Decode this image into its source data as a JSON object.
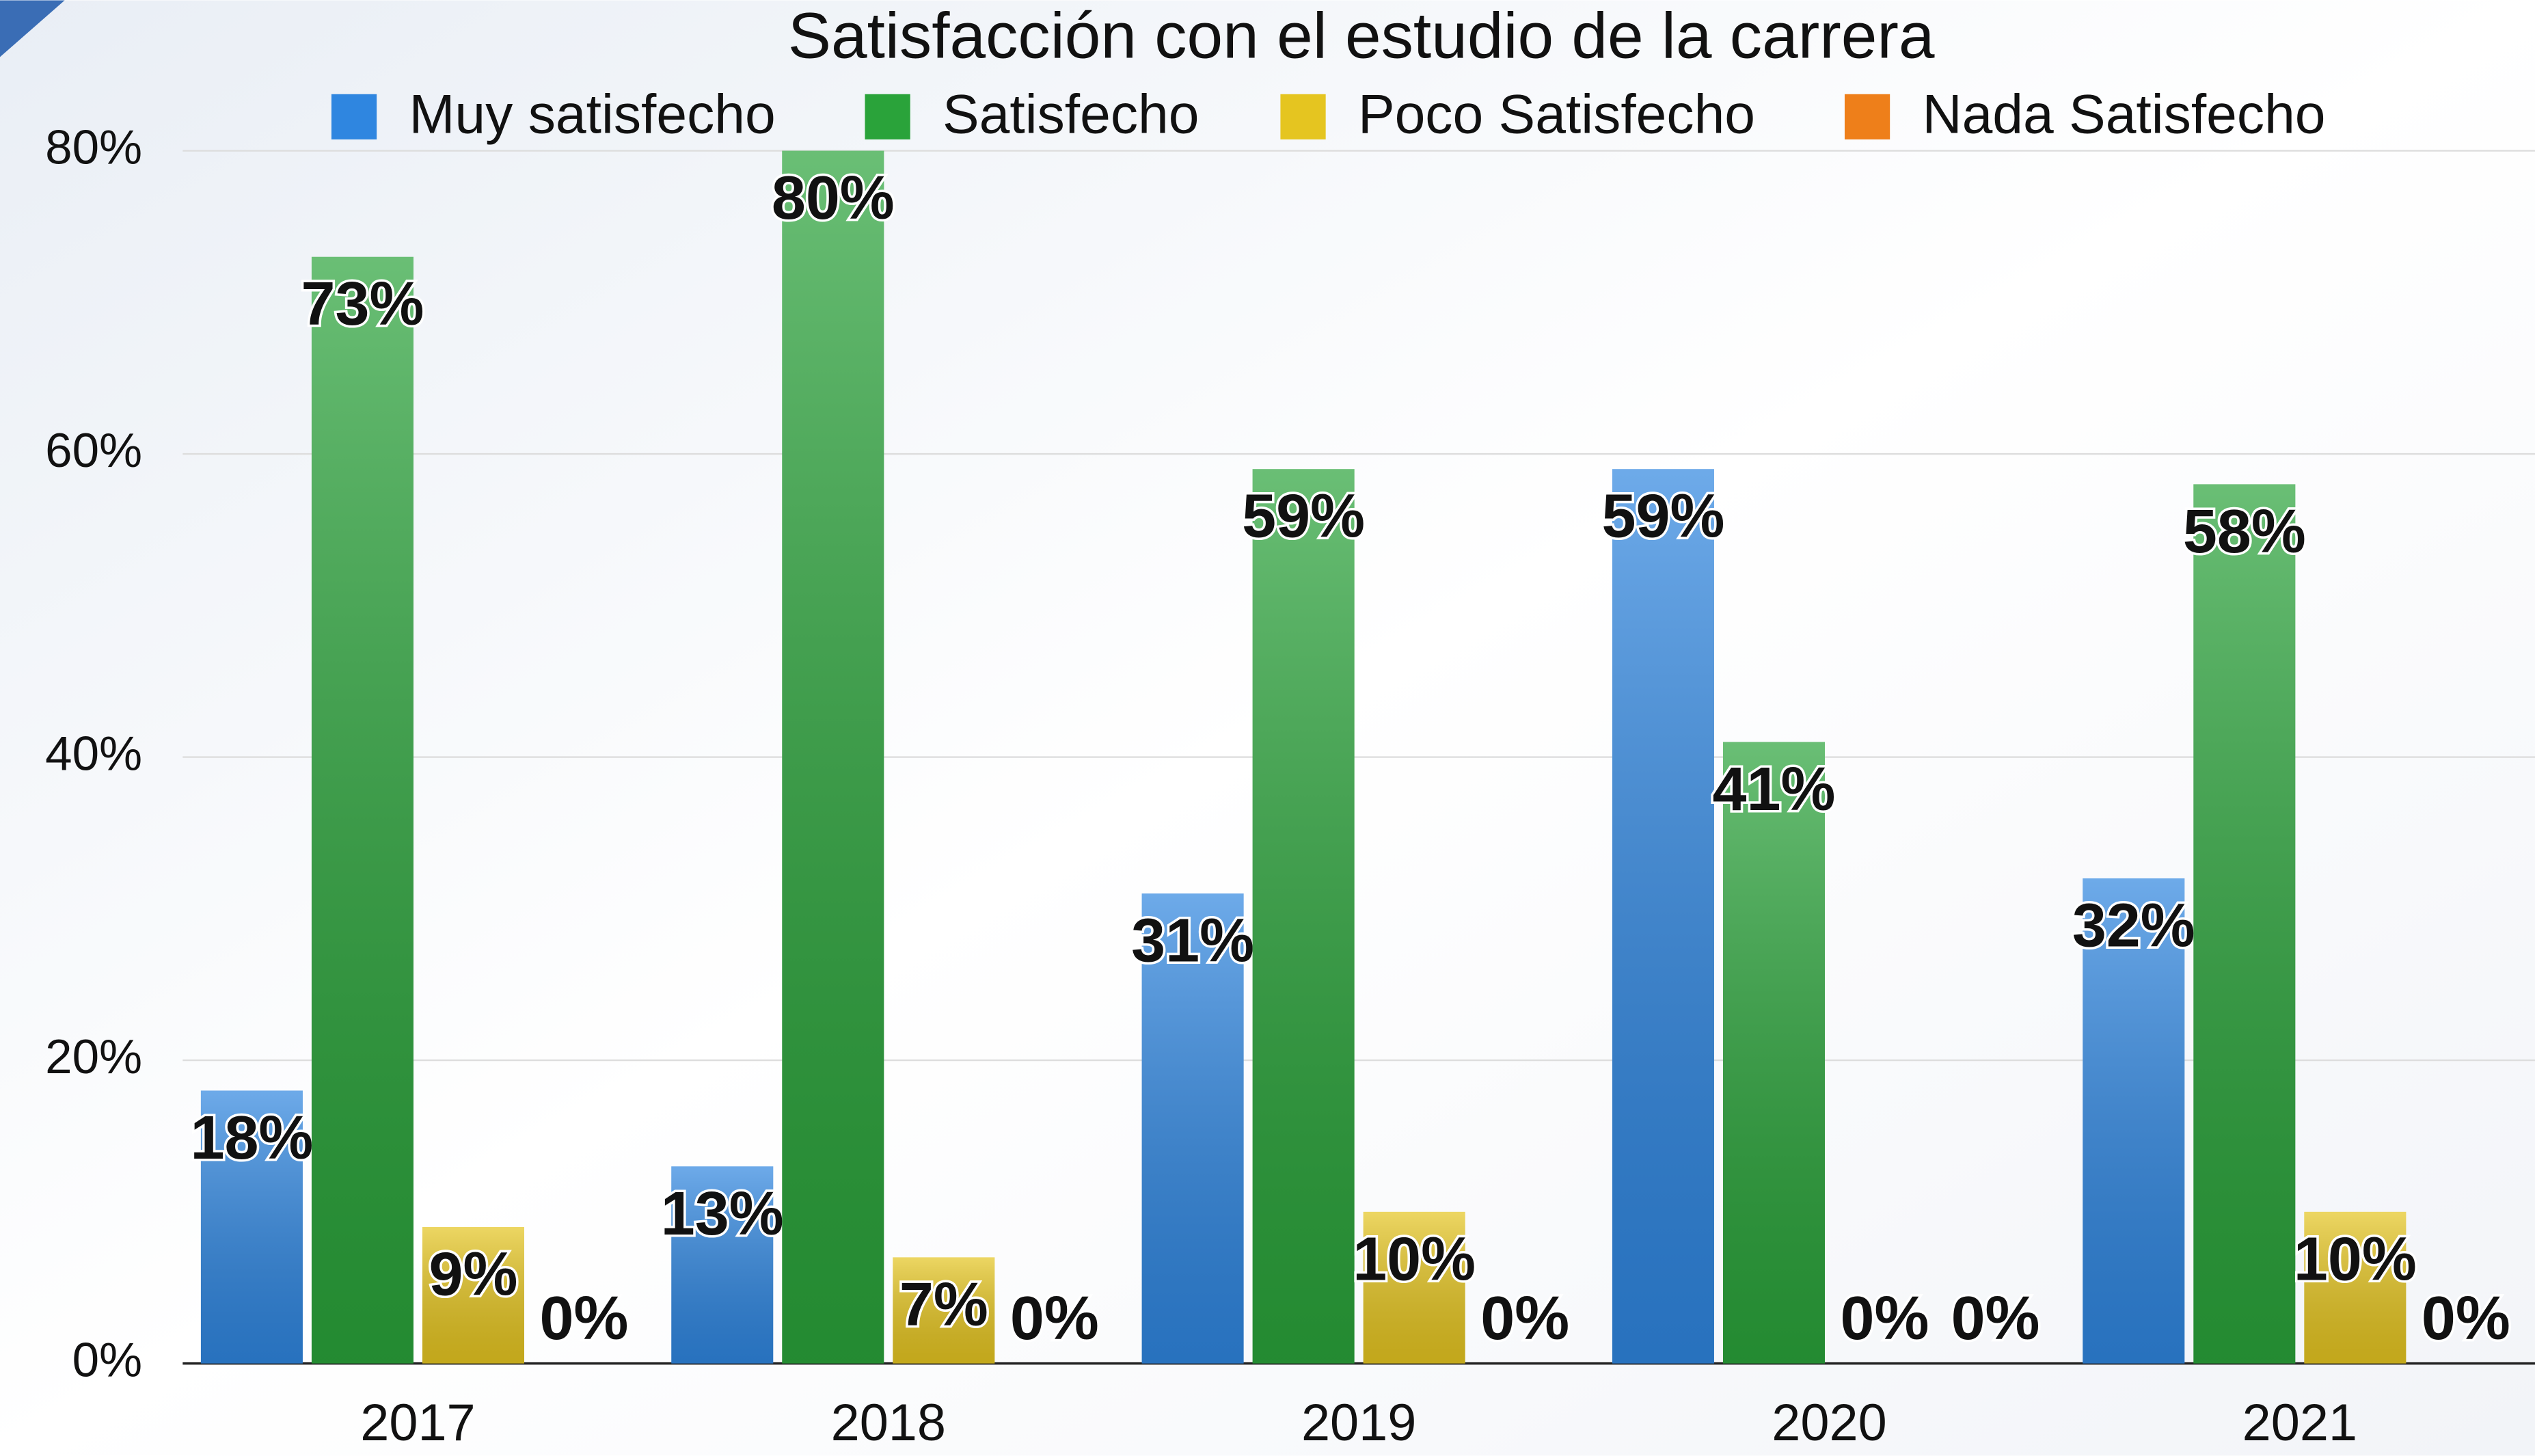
{
  "chart_data": {
    "type": "bar",
    "title": "Satisfacción con el estudio de la carrera",
    "categories": [
      "2017",
      "2018",
      "2019",
      "2020",
      "2021"
    ],
    "series": [
      {
        "name": "Muy satisfecho",
        "color": "#2f86e0",
        "values": [
          18,
          13,
          31,
          59,
          32
        ],
        "value_labels": [
          "18%",
          "13%",
          "31%",
          "59%",
          "32%"
        ]
      },
      {
        "name": "Satisfecho",
        "color": "#2aa33a",
        "values": [
          73,
          80,
          59,
          41,
          58
        ],
        "value_labels": [
          "73%",
          "80%",
          "59%",
          "41%",
          "58%"
        ]
      },
      {
        "name": "Poco Satisfecho",
        "color": "#e5c520",
        "values": [
          9,
          7,
          10,
          0,
          10
        ],
        "value_labels": [
          "9%",
          "7%",
          "10%",
          "0%",
          "10%"
        ]
      },
      {
        "name": "Nada Satisfecho",
        "color": "#ee7f1a",
        "values": [
          0,
          0,
          0,
          0,
          0
        ],
        "value_labels": [
          "0%",
          "0%",
          "0%",
          "0%",
          "0%"
        ]
      }
    ],
    "ylim": [
      0,
      80
    ],
    "yticks": [
      {
        "value": 0,
        "label": "0%"
      },
      {
        "value": 20,
        "label": "20%"
      },
      {
        "value": 40,
        "label": "40%"
      },
      {
        "value": 60,
        "label": "60%"
      },
      {
        "value": 80,
        "label": "80%"
      }
    ],
    "grid": true,
    "legend": "top"
  }
}
